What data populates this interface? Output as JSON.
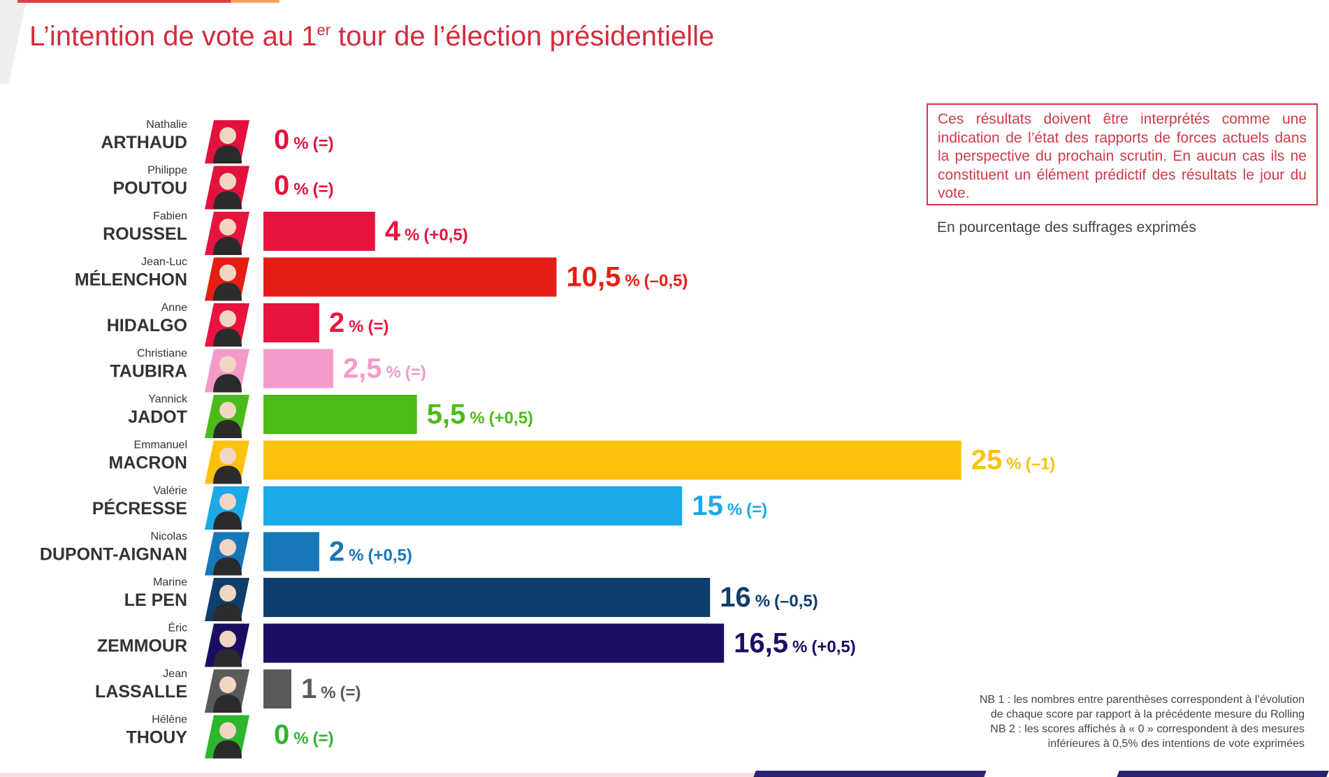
{
  "title": {
    "main_before": "L’intention de vote au 1",
    "sup": "er",
    "main_after": " tour de l’élection présidentielle"
  },
  "note_box": "Ces résultats doivent être interprétés comme une indication de l’état des rapports de forces actuels dans la perspective du prochain scrutin. En aucun cas ils ne constituent un élément prédictif des résultats le jour du vote.",
  "unit_note": "En pourcentage des suffrages exprimés",
  "footnotes": [
    "NB 1 : les nombres entre parenthèses correspondent à l’évolution",
    "de chaque score par rapport à la précédente mesure du Rolling",
    "NB 2 : les scores affichés à « 0 » correspondent à des mesures",
    "inférieures à 0,5% des intentions de vote exprimées"
  ],
  "chart_data": {
    "type": "bar",
    "orientation": "horizontal",
    "value_unit": "%",
    "rows": [
      {
        "first": "Nathalie",
        "last": "ARTHAUD",
        "value": 0,
        "label": "0",
        "change": "(=)",
        "color": "#e3123d"
      },
      {
        "first": "Philippe",
        "last": "POUTOU",
        "value": 0,
        "label": "0",
        "change": "(=)",
        "color": "#e3123d"
      },
      {
        "first": "Fabien",
        "last": "ROUSSEL",
        "value": 4,
        "label": "4",
        "change": "(+0,5)",
        "color": "#e8143f"
      },
      {
        "first": "Jean-Luc",
        "last": "MÉLENCHON",
        "value": 10.5,
        "label": "10,5",
        "change": "(–0,5)",
        "color": "#e51e14"
      },
      {
        "first": "Anne",
        "last": "HIDALGO",
        "value": 2,
        "label": "2",
        "change": "(=)",
        "color": "#e8143f"
      },
      {
        "first": "Christiane",
        "last": "TAUBIRA",
        "value": 2.5,
        "label": "2,5",
        "change": "(=)",
        "color": "#f49ac8"
      },
      {
        "first": "Yannick",
        "last": "JADOT",
        "value": 5.5,
        "label": "5,5",
        "change": "(+0,5)",
        "color": "#4cbb17"
      },
      {
        "first": "Emmanuel",
        "last": "MACRON",
        "value": 25,
        "label": "25",
        "change": "(–1)",
        "color": "#fcc10d"
      },
      {
        "first": "Valérie",
        "last": "PÉCRESSE",
        "value": 15,
        "label": "15",
        "change": "(=)",
        "color": "#1ba9e8"
      },
      {
        "first": "Nicolas",
        "last": "DUPONT-AIGNAN",
        "value": 2,
        "label": "2",
        "change": "(+0,5)",
        "color": "#1677b9"
      },
      {
        "first": "Marine",
        "last": "LE PEN",
        "value": 16,
        "label": "16",
        "change": "(–0,5)",
        "color": "#0e3e6c"
      },
      {
        "first": "Éric",
        "last": "ZEMMOUR",
        "value": 16.5,
        "label": "16,5",
        "change": "(+0,5)",
        "color": "#1a0e63"
      },
      {
        "first": "Jean",
        "last": "LASSALLE",
        "value": 1,
        "label": "1",
        "change": "(=)",
        "color": "#5a5a5a"
      },
      {
        "first": "Hélène",
        "last": "THOUY",
        "value": 0,
        "label": "0",
        "change": "(=)",
        "color": "#2db52d"
      }
    ]
  }
}
